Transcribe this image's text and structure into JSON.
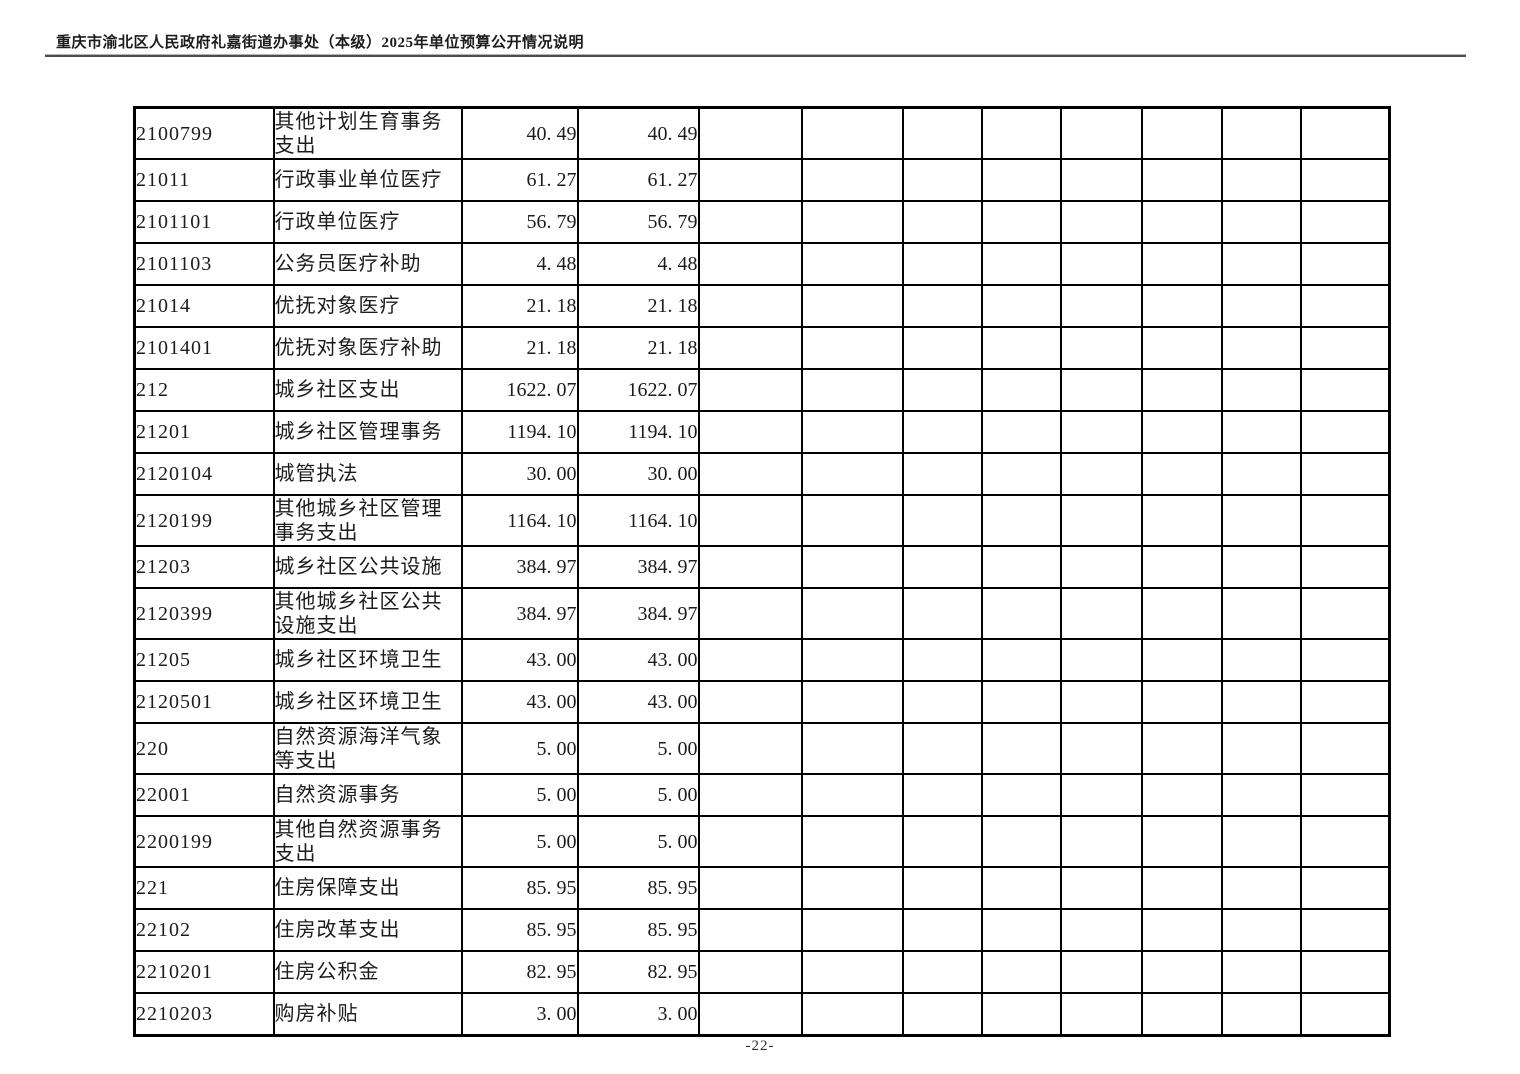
{
  "page": {
    "header_title": "重庆市渝北区人民政府礼嘉街道办事处（本级）2025年单位预算公开情况说明",
    "page_number": "-22-"
  },
  "table": {
    "empty_column_count": 8,
    "rows": [
      {
        "code": "2100799",
        "name": "其他计划生育事务\n支出",
        "amount_col1": "40. 49",
        "amount_col2": "40. 49",
        "two_line": true
      },
      {
        "code": "21011",
        "name": "行政事业单位医疗",
        "amount_col1": "61. 27",
        "amount_col2": "61. 27",
        "two_line": false
      },
      {
        "code": "2101101",
        "name": "行政单位医疗",
        "amount_col1": "56. 79",
        "amount_col2": "56. 79",
        "two_line": false
      },
      {
        "code": "2101103",
        "name": "公务员医疗补助",
        "amount_col1": "4. 48",
        "amount_col2": "4. 48",
        "two_line": false
      },
      {
        "code": "21014",
        "name": "优抚对象医疗",
        "amount_col1": "21. 18",
        "amount_col2": "21. 18",
        "two_line": false
      },
      {
        "code": "2101401",
        "name": "优抚对象医疗补助",
        "amount_col1": "21. 18",
        "amount_col2": "21. 18",
        "two_line": false
      },
      {
        "code": "212",
        "name": "城乡社区支出",
        "amount_col1": "1622. 07",
        "amount_col2": "1622. 07",
        "two_line": false
      },
      {
        "code": "21201",
        "name": "城乡社区管理事务",
        "amount_col1": "1194. 10",
        "amount_col2": "1194. 10",
        "two_line": false
      },
      {
        "code": "2120104",
        "name": "城管执法",
        "amount_col1": "30. 00",
        "amount_col2": "30. 00",
        "two_line": false
      },
      {
        "code": "2120199",
        "name": "其他城乡社区管理\n事务支出",
        "amount_col1": "1164. 10",
        "amount_col2": "1164. 10",
        "two_line": true
      },
      {
        "code": "21203",
        "name": "城乡社区公共设施",
        "amount_col1": "384. 97",
        "amount_col2": "384. 97",
        "two_line": false
      },
      {
        "code": "2120399",
        "name": "其他城乡社区公共\n设施支出",
        "amount_col1": "384. 97",
        "amount_col2": "384. 97",
        "two_line": true
      },
      {
        "code": "21205",
        "name": "城乡社区环境卫生",
        "amount_col1": "43. 00",
        "amount_col2": "43. 00",
        "two_line": false
      },
      {
        "code": "2120501",
        "name": "城乡社区环境卫生",
        "amount_col1": "43. 00",
        "amount_col2": "43. 00",
        "two_line": false
      },
      {
        "code": "220",
        "name": "自然资源海洋气象\n等支出",
        "amount_col1": "5. 00",
        "amount_col2": "5. 00",
        "two_line": true
      },
      {
        "code": "22001",
        "name": "自然资源事务",
        "amount_col1": "5. 00",
        "amount_col2": "5. 00",
        "two_line": false
      },
      {
        "code": "2200199",
        "name": "其他自然资源事务\n支出",
        "amount_col1": "5. 00",
        "amount_col2": "5. 00",
        "two_line": true
      },
      {
        "code": "221",
        "name": "住房保障支出",
        "amount_col1": "85. 95",
        "amount_col2": "85. 95",
        "two_line": false
      },
      {
        "code": "22102",
        "name": "住房改革支出",
        "amount_col1": "85. 95",
        "amount_col2": "85. 95",
        "two_line": false
      },
      {
        "code": "2210201",
        "name": "住房公积金",
        "amount_col1": "82. 95",
        "amount_col2": "82. 95",
        "two_line": false
      },
      {
        "code": "2210203",
        "name": "购房补贴",
        "amount_col1": "3. 00",
        "amount_col2": "3. 00",
        "two_line": false
      }
    ]
  }
}
